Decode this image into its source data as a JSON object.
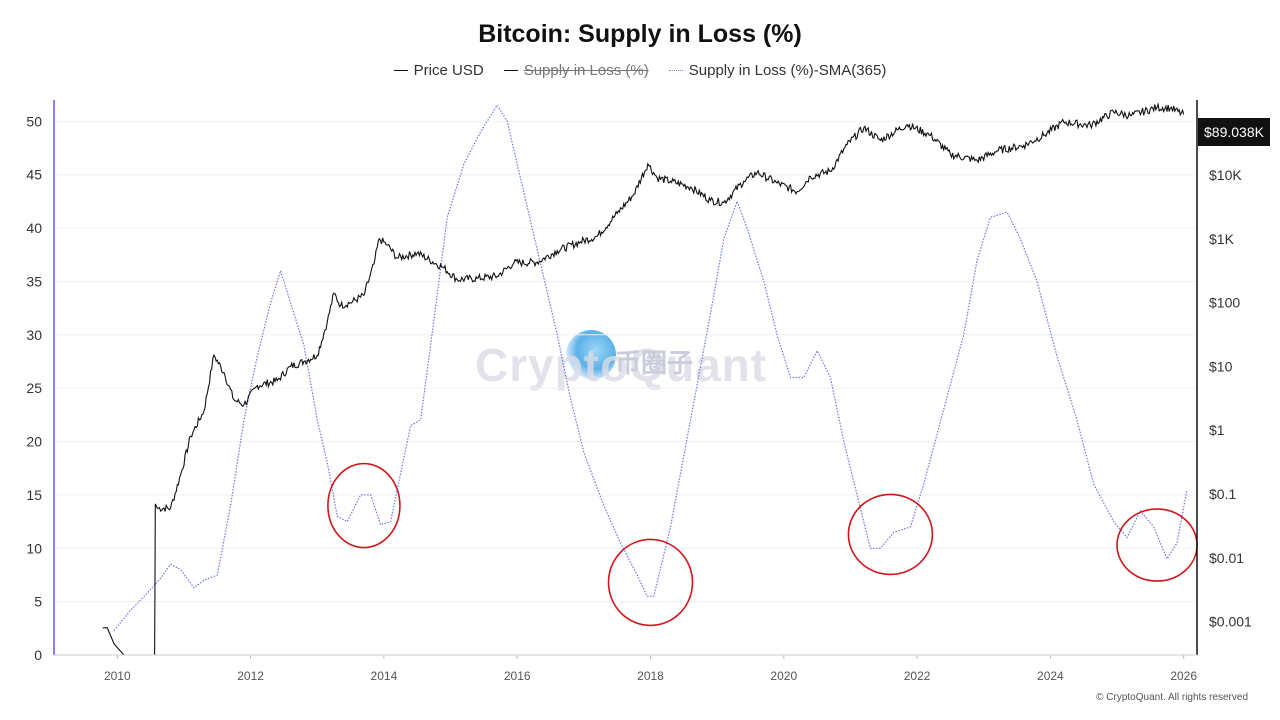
{
  "title": "Bitcoin: Supply in Loss (%)",
  "legend": [
    {
      "label": "Price USD",
      "style": "solid",
      "color": "#111111",
      "enabled": true
    },
    {
      "label": "Supply in Loss (%)",
      "style": "solid",
      "color": "#111111",
      "enabled": false
    },
    {
      "label": "Supply in Loss (%)-SMA(365)",
      "style": "dotted",
      "color": "#7a7ff0",
      "enabled": true
    }
  ],
  "watermark": {
    "text": "CryptoQuant",
    "cn_text": "币圈子"
  },
  "copyright": "© CryptoQuant. All rights reserved",
  "price_tag": "$89.038K",
  "colors": {
    "price": "#111111",
    "sma": "#6f74ee",
    "circles": "#d0161b",
    "tag_bg": "#111111",
    "left_axis": "#8a7ff0"
  },
  "chart_data": {
    "type": "line",
    "x_ticks": [
      "2010",
      "2012",
      "2014",
      "2016",
      "2018",
      "2020",
      "2022",
      "2024",
      "2026"
    ],
    "y_left": {
      "ticks": [
        "0",
        "5",
        "10",
        "15",
        "20",
        "25",
        "30",
        "35",
        "40",
        "45",
        "50"
      ],
      "range": [
        0,
        52
      ]
    },
    "y_right": {
      "scale": "log",
      "ticks": [
        "$0.001",
        "$0.01",
        "$0.1",
        "$1",
        "$10",
        "$100",
        "$1K",
        "$10K"
      ],
      "range": [
        0.0003,
        150000
      ]
    },
    "series": [
      {
        "name": "Price USD",
        "axis": "right",
        "points": [
          [
            2009.78,
            0.0008
          ],
          [
            2009.85,
            0.0008
          ],
          [
            2009.95,
            0.00045
          ],
          [
            2010.1,
            0.0003
          ],
          [
            2010.4,
            0.0003
          ],
          [
            2010.56,
            0.0003
          ],
          [
            2010.57,
            0.07
          ],
          [
            2010.6,
            0.06
          ],
          [
            2010.8,
            0.06
          ],
          [
            2010.95,
            0.2
          ],
          [
            2011.1,
            0.8
          ],
          [
            2011.3,
            2
          ],
          [
            2011.45,
            15
          ],
          [
            2011.6,
            8
          ],
          [
            2011.75,
            3
          ],
          [
            2011.9,
            2.5
          ],
          [
            2012.1,
            5
          ],
          [
            2012.4,
            6
          ],
          [
            2012.6,
            10
          ],
          [
            2012.8,
            12
          ],
          [
            2013.0,
            15
          ],
          [
            2013.15,
            50
          ],
          [
            2013.25,
            140
          ],
          [
            2013.35,
            90
          ],
          [
            2013.5,
            100
          ],
          [
            2013.7,
            130
          ],
          [
            2013.85,
            400
          ],
          [
            2013.93,
            1000
          ],
          [
            2014.05,
            800
          ],
          [
            2014.2,
            500
          ],
          [
            2014.5,
            600
          ],
          [
            2014.9,
            350
          ],
          [
            2015.1,
            230
          ],
          [
            2015.4,
            240
          ],
          [
            2015.7,
            260
          ],
          [
            2015.95,
            420
          ],
          [
            2016.3,
            430
          ],
          [
            2016.6,
            650
          ],
          [
            2016.95,
            900
          ],
          [
            2017.2,
            1100
          ],
          [
            2017.5,
            2500
          ],
          [
            2017.75,
            5000
          ],
          [
            2017.96,
            15000
          ],
          [
            2018.1,
            9000
          ],
          [
            2018.3,
            8000
          ],
          [
            2018.6,
            6500
          ],
          [
            2018.9,
            4000
          ],
          [
            2019.1,
            3700
          ],
          [
            2019.4,
            8000
          ],
          [
            2019.6,
            11000
          ],
          [
            2019.9,
            7500
          ],
          [
            2020.2,
            5500
          ],
          [
            2020.4,
            9500
          ],
          [
            2020.7,
            11500
          ],
          [
            2020.95,
            30000
          ],
          [
            2021.2,
            55000
          ],
          [
            2021.45,
            35000
          ],
          [
            2021.85,
            62000
          ],
          [
            2022.2,
            42000
          ],
          [
            2022.5,
            21000
          ],
          [
            2022.9,
            17000
          ],
          [
            2023.2,
            24000
          ],
          [
            2023.6,
            29000
          ],
          [
            2023.9,
            42000
          ],
          [
            2024.2,
            68000
          ],
          [
            2024.6,
            60000
          ],
          [
            2024.95,
            97000
          ],
          [
            2025.2,
            85000
          ],
          [
            2025.6,
            115000
          ],
          [
            2025.8,
            112000
          ],
          [
            2026.0,
            89038
          ]
        ]
      },
      {
        "name": "Supply in Loss (%)-SMA(365)",
        "axis": "left",
        "points": [
          [
            2009.95,
            2.3
          ],
          [
            2010.2,
            4.2
          ],
          [
            2010.45,
            5.8
          ],
          [
            2010.65,
            7.2
          ],
          [
            2010.8,
            8.5
          ],
          [
            2010.95,
            8.0
          ],
          [
            2011.15,
            6.3
          ],
          [
            2011.3,
            7.0
          ],
          [
            2011.5,
            7.5
          ],
          [
            2011.7,
            14
          ],
          [
            2011.9,
            22
          ],
          [
            2012.1,
            28
          ],
          [
            2012.3,
            33
          ],
          [
            2012.45,
            36
          ],
          [
            2012.6,
            33
          ],
          [
            2012.8,
            29
          ],
          [
            2013.0,
            22
          ],
          [
            2013.15,
            18
          ],
          [
            2013.3,
            13
          ],
          [
            2013.45,
            12.5
          ],
          [
            2013.65,
            15
          ],
          [
            2013.8,
            15
          ],
          [
            2013.95,
            12.2
          ],
          [
            2014.1,
            12.5
          ],
          [
            2014.25,
            17
          ],
          [
            2014.4,
            21.5
          ],
          [
            2014.55,
            22
          ],
          [
            2014.7,
            29
          ],
          [
            2014.95,
            41
          ],
          [
            2015.2,
            46
          ],
          [
            2015.45,
            49
          ],
          [
            2015.7,
            51.5
          ],
          [
            2015.85,
            50
          ],
          [
            2016.0,
            46
          ],
          [
            2016.3,
            38
          ],
          [
            2016.6,
            30
          ],
          [
            2016.8,
            24
          ],
          [
            2017.0,
            19
          ],
          [
            2017.3,
            14
          ],
          [
            2017.55,
            10.5
          ],
          [
            2017.8,
            7.5
          ],
          [
            2017.95,
            5.5
          ],
          [
            2018.05,
            5.5
          ],
          [
            2018.3,
            12
          ],
          [
            2018.6,
            22
          ],
          [
            2018.9,
            32
          ],
          [
            2019.1,
            39
          ],
          [
            2019.3,
            42.5
          ],
          [
            2019.45,
            40
          ],
          [
            2019.7,
            35
          ],
          [
            2019.9,
            30
          ],
          [
            2020.1,
            26
          ],
          [
            2020.3,
            26
          ],
          [
            2020.5,
            28.5
          ],
          [
            2020.7,
            26
          ],
          [
            2020.9,
            20
          ],
          [
            2021.1,
            15
          ],
          [
            2021.3,
            10
          ],
          [
            2021.45,
            10
          ],
          [
            2021.65,
            11.5
          ],
          [
            2021.9,
            12
          ],
          [
            2022.1,
            16
          ],
          [
            2022.4,
            23
          ],
          [
            2022.7,
            30
          ],
          [
            2022.9,
            37
          ],
          [
            2023.1,
            41
          ],
          [
            2023.35,
            41.5
          ],
          [
            2023.55,
            39
          ],
          [
            2023.8,
            35
          ],
          [
            2024.1,
            28
          ],
          [
            2024.4,
            22
          ],
          [
            2024.65,
            16
          ],
          [
            2024.95,
            12.5
          ],
          [
            2025.15,
            11
          ],
          [
            2025.35,
            13.5
          ],
          [
            2025.55,
            12
          ],
          [
            2025.75,
            9
          ],
          [
            2025.9,
            10.5
          ],
          [
            2026.05,
            15.5
          ]
        ]
      }
    ],
    "annotations": [
      "circle ~2013.7",
      "circle ~2018.0",
      "circle ~2021.6",
      "circle ~2025.6"
    ]
  }
}
